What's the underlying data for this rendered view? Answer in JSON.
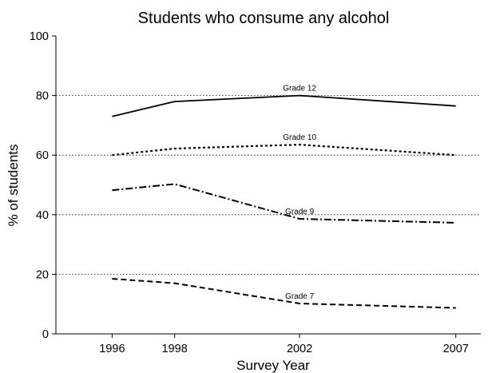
{
  "chart_data": {
    "type": "line",
    "title": "Students who consume any alcohol",
    "xlabel": "Survey Year",
    "ylabel": "% of students",
    "x": [
      1996,
      1998,
      2002,
      2007
    ],
    "x_tick_labels": [
      "1996",
      "1998",
      "2002",
      "2007"
    ],
    "xlim": [
      1994.2,
      2007.8
    ],
    "ylim": [
      0,
      100
    ],
    "y_ticks": [
      0,
      20,
      40,
      60,
      80,
      100
    ],
    "y_tick_labels": [
      "0",
      "20",
      "40",
      "60",
      "80",
      "100"
    ],
    "grid": "horizontal dotted at 20, 40, 60, 80",
    "legend": "none (series labelled directly on lines)",
    "series": [
      {
        "name": "Grade 12",
        "values": [
          73,
          78,
          80,
          76.5
        ],
        "dash": "solid",
        "color": "#000000"
      },
      {
        "name": "Grade 10",
        "values": [
          60,
          62.2,
          63.5,
          60
        ],
        "dash": "dotted",
        "color": "#000000"
      },
      {
        "name": "Grade 9",
        "values": [
          48.2,
          50.3,
          38.6,
          37.3
        ],
        "dash": "dash-dot",
        "color": "#000000"
      },
      {
        "name": "Grade 7",
        "values": [
          18.5,
          17,
          10.2,
          8.7
        ],
        "dash": "dashed",
        "color": "#000000"
      }
    ]
  }
}
